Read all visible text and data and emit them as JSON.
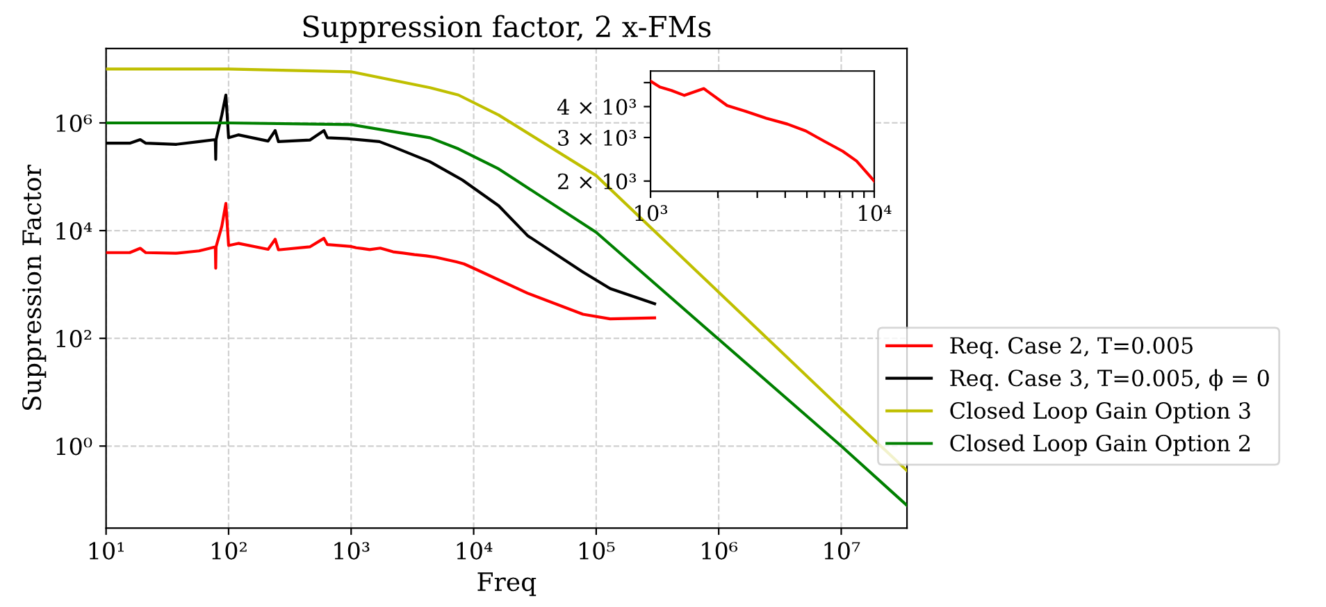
{
  "chart_data": [
    {
      "type": "line",
      "title": "Suppression factor, 2 x-FMs",
      "xlabel": "Freq",
      "ylabel": "Suppression Factor",
      "log": "xy",
      "grid": true,
      "legend": "right",
      "xlim": [
        10,
        34400000
      ],
      "ylim": [
        0.03,
        24000000
      ],
      "xticks": [
        {
          "value": 10,
          "label": "10¹"
        },
        {
          "value": 100,
          "label": "10²"
        },
        {
          "value": 1000,
          "label": "10³"
        },
        {
          "value": 10000,
          "label": "10⁴"
        },
        {
          "value": 100000,
          "label": "10⁵"
        },
        {
          "value": 1000000,
          "label": "10⁶"
        },
        {
          "value": 10000000,
          "label": "10⁷"
        }
      ],
      "yticks": [
        {
          "value": 1,
          "label": "10⁰"
        },
        {
          "value": 100,
          "label": "10²"
        },
        {
          "value": 10000,
          "label": "10⁴"
        },
        {
          "value": 1000000,
          "label": "10⁶"
        }
      ],
      "series": [
        {
          "name": "Req. Case 2, T=0.005",
          "color": "#ff0000",
          "x": [
            10.1,
            15.6,
            19,
            21.1,
            37.2,
            57.4,
            77.9,
            78.5,
            79,
            88,
            95,
            100,
            120,
            210,
            240,
            255,
            460,
            600,
            640,
            1000,
            1100,
            1240,
            1417,
            1730,
            2200,
            2660,
            3290,
            4090,
            4940,
            5970,
            7230,
            8340,
            10000,
            27500,
            78000,
            130000,
            300000
          ],
          "values": [
            3900,
            3900,
            4700,
            3900,
            3800,
            4200,
            5000,
            2000,
            5000,
            12000,
            32000,
            5300,
            5800,
            4500,
            6900,
            4400,
            5000,
            7200,
            5500,
            5070,
            4800,
            4650,
            4440,
            4730,
            4040,
            3830,
            3590,
            3400,
            3190,
            2900,
            2640,
            2410,
            2000,
            690,
            280,
            230,
            240
          ]
        },
        {
          "name": "Req. Case 3, T=0.005, ϕ = 0",
          "color": "#000000",
          "x": [
            10.1,
            15.6,
            19,
            21.1,
            37.2,
            57.4,
            77.9,
            78.5,
            79,
            88,
            95,
            100,
            120,
            210,
            240,
            255,
            460,
            600,
            640,
            930,
            1700,
            2200,
            4400,
            8100,
            16000,
            27500,
            78000,
            130000,
            300000
          ],
          "values": [
            420000,
            420000,
            490000,
            420000,
            400000,
            450000,
            490000,
            210000,
            490000,
            1400000,
            3300000,
            530000,
            600000,
            460000,
            720000,
            450000,
            480000,
            720000,
            530000,
            510000,
            450000,
            360000,
            190000,
            87000,
            29000,
            8100,
            1700,
            840,
            440
          ]
        },
        {
          "name": "Closed Loop Gain Option 3",
          "color": "#bfbf00",
          "x": [
            10,
            100,
            1000,
            4400,
            7500,
            16000,
            100000,
            1000000,
            10000000,
            34400000
          ],
          "values": [
            10000000,
            10000000,
            8900000,
            4500000,
            3300000,
            1400000,
            105000,
            720,
            4.9,
            0.35
          ]
        },
        {
          "name": "Closed Loop Gain Option 2",
          "color": "#008000",
          "x": [
            10,
            100,
            1000,
            4400,
            7500,
            16000,
            100000,
            1000000,
            10000000,
            34400000
          ],
          "values": [
            1000000,
            1000000,
            930000,
            530000,
            330000,
            140000,
            9300,
            96,
            1.0,
            0.079
          ]
        }
      ]
    },
    {
      "type": "line",
      "log": "xy",
      "grid": false,
      "legend": false,
      "xlim": [
        1000,
        10000
      ],
      "ylim": [
        1820,
        5570
      ],
      "xticks": [
        {
          "value": 1000,
          "label": "10³"
        },
        {
          "value": 2000,
          "label": null
        },
        {
          "value": 3000,
          "label": null
        },
        {
          "value": 4000,
          "label": null
        },
        {
          "value": 5000,
          "label": null
        },
        {
          "value": 6000,
          "label": null
        },
        {
          "value": 7000,
          "label": null
        },
        {
          "value": 8000,
          "label": null
        },
        {
          "value": 9000,
          "label": null
        },
        {
          "value": 10000,
          "label": "10⁴"
        }
      ],
      "yticks": [
        {
          "value": 2000,
          "label": "2 × 10³"
        },
        {
          "value": 3000,
          "label": "3 × 10³"
        },
        {
          "value": 4000,
          "label": "4 × 10³"
        },
        {
          "value": 5000,
          "label": null
        }
      ],
      "series": [
        {
          "color": "#ff0000",
          "x": [
            1000,
            1100,
            1240,
            1417,
            1730,
            2200,
            2660,
            3290,
            4090,
            4940,
            5970,
            7230,
            8340,
            10000
          ],
          "values": [
            5070,
            4800,
            4650,
            4440,
            4730,
            4040,
            3830,
            3590,
            3400,
            3190,
            2900,
            2640,
            2410,
            2000
          ]
        }
      ]
    }
  ]
}
